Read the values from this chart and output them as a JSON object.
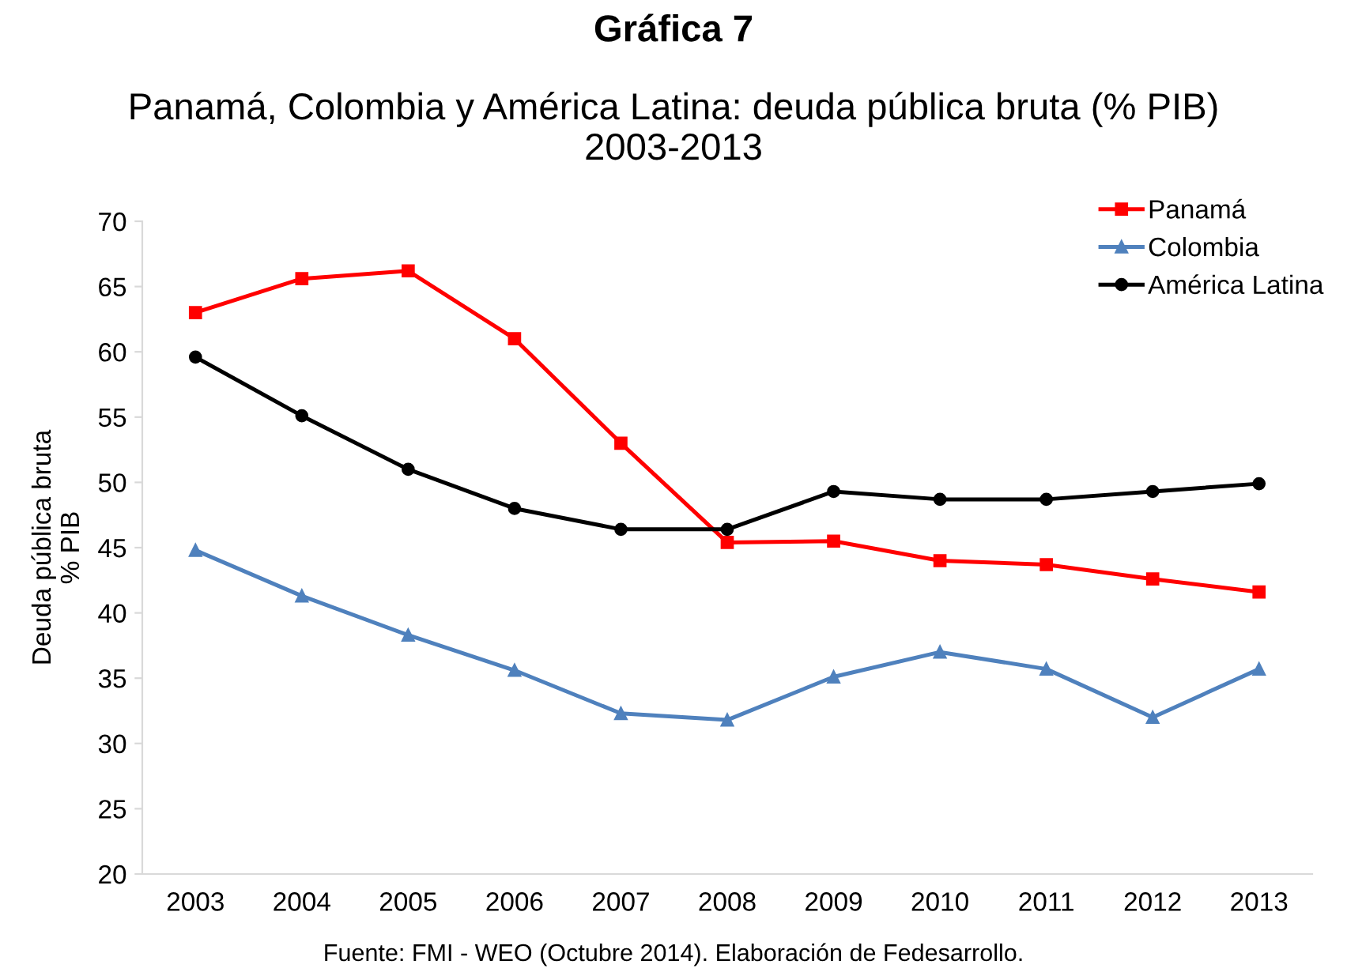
{
  "chart_data": {
    "type": "line",
    "title": "Gráfica 7",
    "subtitle": "Panamá, Colombia y América Latina: deuda pública bruta (% PIB)\n2003-2013",
    "ylabel": "Deuda pública bruta\n% PIB",
    "annotations": [
      "Fuente: FMI - WEO (Octubre 2014). Elaboración de Fedesarrollo."
    ],
    "categories": [
      "2003",
      "2004",
      "2005",
      "2006",
      "2007",
      "2008",
      "2009",
      "2010",
      "2011",
      "2012",
      "2013"
    ],
    "series": [
      {
        "name": "Panamá",
        "color": "#ff0000",
        "marker": "square",
        "values": [
          63.0,
          65.6,
          66.2,
          61.0,
          53.0,
          45.4,
          45.5,
          44.0,
          43.7,
          42.6,
          41.6
        ]
      },
      {
        "name": "Colombia",
        "color": "#4f81bd",
        "marker": "triangle",
        "values": [
          44.8,
          41.3,
          38.3,
          35.6,
          32.3,
          31.8,
          35.1,
          37.0,
          35.7,
          32.0,
          35.7
        ]
      },
      {
        "name": "América Latina",
        "color": "#000000",
        "marker": "circle",
        "values": [
          59.6,
          55.1,
          51.0,
          48.0,
          46.4,
          46.4,
          49.3,
          48.7,
          48.7,
          49.3,
          49.9
        ]
      }
    ],
    "ylim": [
      20,
      70
    ],
    "yticks": [
      20,
      25,
      30,
      35,
      40,
      45,
      50,
      55,
      60,
      65,
      70
    ],
    "grid": false,
    "legend": "top right",
    "line_style": "solid"
  }
}
